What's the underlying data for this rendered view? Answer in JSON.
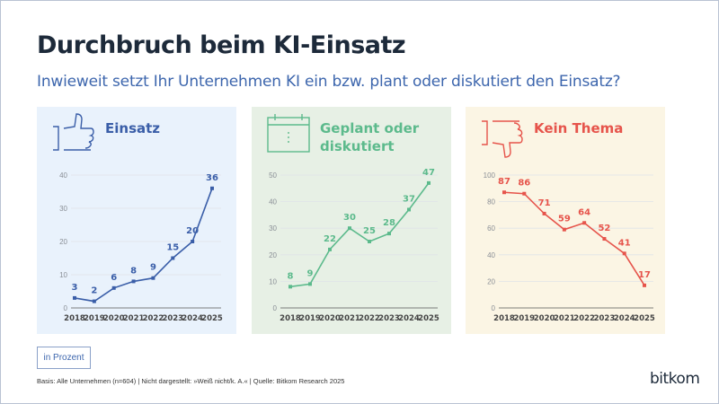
{
  "title": "Durchbruch beim KI-Einsatz",
  "subtitle": "Inwieweit setzt Ihr Unternehmen KI ein bzw. plant oder diskutiert den Einsatz?",
  "unit_label": "in Prozent",
  "source": "Basis: Alle Unternehmen (n=604) | Nicht dargestellt: »Weiß nicht/k. A.« | Quelle: Bitkom Research 2025",
  "logo": "bitkom",
  "chart_data": [
    {
      "type": "line",
      "title": "Einsatz",
      "icon": "thumbs-up-icon",
      "color": "#3a5ea8",
      "background": "#e9f2fc",
      "categories": [
        "2018",
        "2019",
        "2020",
        "2021",
        "2022",
        "2023",
        "2024",
        "2025"
      ],
      "values": [
        3,
        2,
        6,
        8,
        9,
        15,
        20,
        36
      ],
      "ylim": [
        0,
        40
      ],
      "yticks": [
        0,
        10,
        20,
        30,
        40
      ],
      "grid": true
    },
    {
      "type": "line",
      "title": "Geplant oder diskutiert",
      "title_lines": [
        "Geplant oder",
        "diskutiert"
      ],
      "icon": "calendar-icon",
      "color": "#5cba8c",
      "background": "#e7f0e5",
      "categories": [
        "2018",
        "2019",
        "2020",
        "2021",
        "2022",
        "2023",
        "2024",
        "2025"
      ],
      "values": [
        8,
        9,
        22,
        30,
        25,
        28,
        37,
        47
      ],
      "ylim": [
        0,
        50
      ],
      "yticks": [
        0,
        10,
        20,
        30,
        40,
        50
      ],
      "grid": true
    },
    {
      "type": "line",
      "title": "Kein Thema",
      "icon": "thumbs-down-icon",
      "color": "#e6544b",
      "background": "#fbf5e4",
      "categories": [
        "2018",
        "2019",
        "2020",
        "2021",
        "2022",
        "2023",
        "2024",
        "2025"
      ],
      "values": [
        87,
        86,
        71,
        59,
        64,
        52,
        41,
        17
      ],
      "ylim": [
        0,
        100
      ],
      "yticks": [
        0,
        20,
        40,
        60,
        80,
        100
      ],
      "grid": true
    }
  ]
}
